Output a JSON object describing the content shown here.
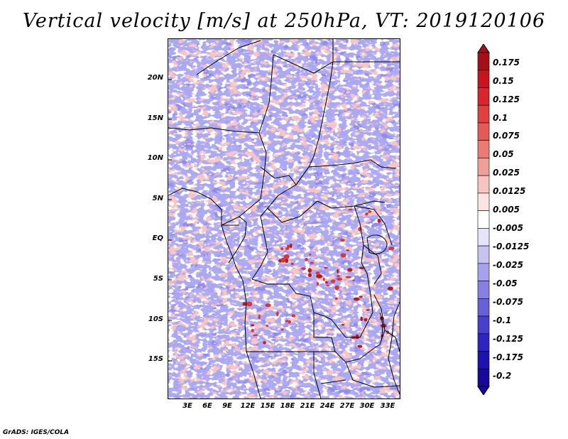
{
  "title": "Vertical velocity [m/s] at 250hPa, VT: 2019120106",
  "credit": "GrADS: IGES/COLA",
  "lat_labels": [
    "20N",
    "15N",
    "10N",
    "5N",
    "EQ",
    "5S",
    "10S",
    "15S"
  ],
  "lon_labels": [
    "3E",
    "6E",
    "9E",
    "12E",
    "15E",
    "18E",
    "21E",
    "24E",
    "27E",
    "30E",
    "33E"
  ],
  "colorbar": {
    "labels": [
      "0.175",
      "0.15",
      "0.125",
      "0.1",
      "0.075",
      "0.05",
      "0.025",
      "0.0125",
      "0.005",
      "-0.005",
      "-0.0125",
      "-0.025",
      "-0.05",
      "-0.075",
      "-0.1",
      "-0.125",
      "-0.175",
      "-0.2"
    ],
    "colors": [
      "#a50f15",
      "#c8141c",
      "#d7262d",
      "#e0413f",
      "#e45a55",
      "#ea7a73",
      "#f09e98",
      "#f6c5c1",
      "#fbe5e3",
      "#ffffff",
      "#e6e4fb",
      "#c6c3f3",
      "#a6a1ec",
      "#8680e4",
      "#6660da",
      "#4740cf",
      "#2e24c2",
      "#1d12b0",
      "#170a9a"
    ]
  },
  "palette": {
    "background_field": "#a7a6f0",
    "red_field": "#f0a4a4",
    "strong_red": "#b51c1c",
    "border": "#000000"
  }
}
